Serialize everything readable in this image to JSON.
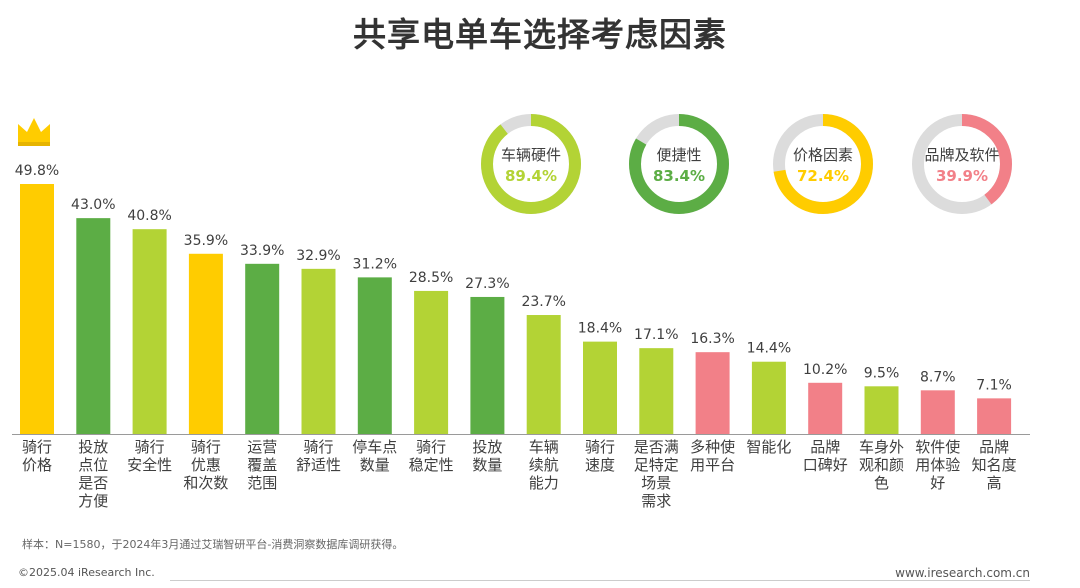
{
  "title": "共享电单车选择考虑因素",
  "chart_data": {
    "type": "bar",
    "title": "共享电单车选择考虑因素",
    "unit": "%",
    "ylim": [
      0,
      50
    ],
    "categories": [
      [
        "骑行",
        "价格"
      ],
      [
        "投放",
        "点位",
        "是否",
        "方便"
      ],
      [
        "骑行",
        "安全性"
      ],
      [
        "骑行",
        "优惠",
        "和次数"
      ],
      [
        "运营",
        "覆盖",
        "范围"
      ],
      [
        "骑行",
        "舒适性"
      ],
      [
        "停车点",
        "数量"
      ],
      [
        "骑行",
        "稳定性"
      ],
      [
        "投放",
        "数量"
      ],
      [
        "车辆",
        "续航",
        "能力"
      ],
      [
        "骑行",
        "速度"
      ],
      [
        "是否满",
        "足特定",
        "场景",
        "需求"
      ],
      [
        "多种使",
        "用平台"
      ],
      [
        "智能化"
      ],
      [
        "品牌",
        "口碑好"
      ],
      [
        "车身外",
        "观和颜",
        "色"
      ],
      [
        "软件使",
        "用体验",
        "好"
      ],
      [
        "品牌",
        "知名度",
        "高"
      ]
    ],
    "values": [
      49.8,
      43.0,
      40.8,
      35.9,
      33.9,
      32.9,
      31.2,
      28.5,
      27.3,
      23.7,
      18.4,
      17.1,
      16.3,
      14.4,
      10.2,
      9.5,
      8.7,
      7.1
    ],
    "value_labels": [
      "49.8%",
      "43.0%",
      "40.8%",
      "35.9%",
      "33.9%",
      "32.9%",
      "31.2%",
      "28.5%",
      "27.3%",
      "23.7%",
      "18.4%",
      "17.1%",
      "16.3%",
      "14.4%",
      "10.2%",
      "9.5%",
      "8.7%",
      "7.1%"
    ],
    "bar_colors": [
      "#ffcc00",
      "#5cad45",
      "#b3d335",
      "#ffcc00",
      "#5cad45",
      "#b3d335",
      "#5cad45",
      "#b3d335",
      "#5cad45",
      "#b3d335",
      "#b3d335",
      "#b3d335",
      "#f28088",
      "#b3d335",
      "#f28088",
      "#b3d335",
      "#f28088",
      "#f28088"
    ],
    "top_marker": "crown-icon"
  },
  "donuts": [
    {
      "name": "车辆硬件",
      "value": 89.4,
      "label": "89.4%",
      "color": "#b3d335"
    },
    {
      "name": "便捷性",
      "value": 83.4,
      "label": "83.4%",
      "color": "#5cad45"
    },
    {
      "name": "价格因素",
      "value": 72.4,
      "label": "72.4%",
      "color": "#ffcc00"
    },
    {
      "name": "品牌及软件",
      "value": 39.9,
      "label": "39.9%",
      "color": "#f28088"
    }
  ],
  "donut_track_color": "#dcdcdc",
  "footnote": "样本：N=1580，于2024年3月通过艾瑞智研平台-消费洞察数据库调研获得。",
  "copyright": "©2025.04 iResearch Inc.",
  "url": "www.iresearch.com.cn"
}
